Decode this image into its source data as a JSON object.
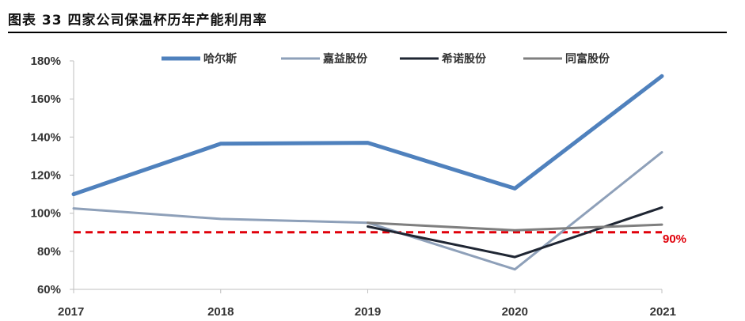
{
  "page": {
    "title": "图表 33 四家公司保温杯历年产能利用率"
  },
  "chart_data": {
    "type": "line",
    "title": "",
    "xlabel": "",
    "ylabel": "",
    "categories": [
      "2017",
      "2018",
      "2019",
      "2020",
      "2021"
    ],
    "y_ticks": [
      "60%",
      "80%",
      "100%",
      "120%",
      "140%",
      "160%",
      "180%"
    ],
    "ylim": [
      60,
      180
    ],
    "grid": false,
    "legend_position": "top",
    "series": [
      {
        "name": "哈尔斯",
        "color": "#4f81bd",
        "width": 5,
        "values": [
          110,
          136.5,
          137,
          113,
          172
        ]
      },
      {
        "name": "嘉益股份",
        "color": "#8ea0b9",
        "width": 3,
        "values": [
          102.5,
          97,
          95,
          70.5,
          132
        ]
      },
      {
        "name": "希诺股份",
        "color": "#1f2633",
        "width": 3,
        "values": [
          null,
          null,
          93,
          77,
          103
        ]
      },
      {
        "name": "同富股份",
        "color": "#7f7f7f",
        "width": 3,
        "values": [
          null,
          null,
          95,
          91,
          94
        ]
      }
    ],
    "reference_line": {
      "value": 90,
      "label": "90%",
      "color": "#e0000a",
      "style": "dashed"
    }
  }
}
